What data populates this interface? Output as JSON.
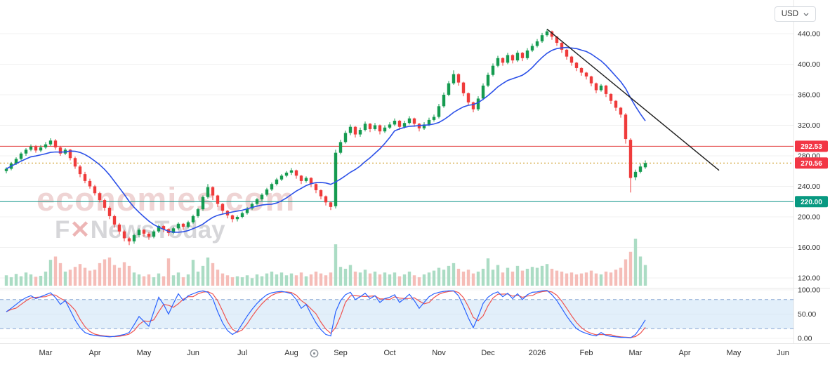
{
  "toolbar": {
    "currency": "USD"
  },
  "watermark": {
    "line1": "economies.com",
    "f": "F",
    "x": "✕",
    "rest": "NewsToday"
  },
  "colors": {
    "up": "#159b50",
    "down": "#ef3b3b",
    "ma": "#2b50e8",
    "trend": "#1f1f1f",
    "vol_up": "#abdcc4",
    "vol_down": "#f5bdb8",
    "osc_k": "#2962ff",
    "osc_d": "#ef5350",
    "band_fill": "#cfe4f7",
    "band_line": "#87a6d2",
    "grid": "#f0f0f0",
    "separator": "#e7e7e7",
    "axis_text": "#2f2f2f"
  },
  "chart_data": {
    "type": "candlestick",
    "currency": "USD",
    "months": [
      "Mar",
      "Apr",
      "May",
      "Jun",
      "Jul",
      "Aug",
      "Sep",
      "Oct",
      "Nov",
      "Dec",
      "2026",
      "Feb",
      "Mar",
      "Apr",
      "May",
      "Jun"
    ],
    "y_ticks": [
      440,
      400,
      360,
      320,
      280,
      240,
      200,
      160,
      120
    ],
    "osc_ticks": [
      100,
      50,
      0
    ],
    "osc_band": [
      20,
      80
    ],
    "price_range": [
      120,
      455
    ],
    "ma_period": 13,
    "levels": [
      {
        "price": 292.53,
        "label": "292.53",
        "line": "solid",
        "color": "#e23b3b",
        "tag_color": "#f23645"
      },
      {
        "price": 270.56,
        "label": "270.56",
        "line": "dotted",
        "color": "#cf9f2f",
        "tag_color": "#f23645"
      },
      {
        "price": 220.0,
        "label": "220.00",
        "line": "solid",
        "color": "#0d9488",
        "tag_color": "#089981"
      }
    ],
    "trend_line": {
      "start_index": 110,
      "start_price": 446,
      "end_index": 145,
      "end_price": 261
    },
    "ohlc": [
      [
        260,
        265,
        257,
        263
      ],
      [
        263,
        272,
        261,
        270
      ],
      [
        270,
        278,
        268,
        276
      ],
      [
        276,
        285,
        274,
        283
      ],
      [
        283,
        290,
        280,
        288
      ],
      [
        288,
        295,
        286,
        292
      ],
      [
        292,
        294,
        284,
        287
      ],
      [
        287,
        294,
        285,
        291
      ],
      [
        291,
        298,
        289,
        295
      ],
      [
        295,
        303,
        293,
        300
      ],
      [
        300,
        302,
        288,
        291
      ],
      [
        291,
        293,
        280,
        283
      ],
      [
        283,
        290,
        281,
        288
      ],
      [
        288,
        289,
        274,
        277
      ],
      [
        277,
        279,
        263,
        266
      ],
      [
        266,
        268,
        252,
        256
      ],
      [
        256,
        259,
        244,
        247
      ],
      [
        247,
        250,
        237,
        240
      ],
      [
        240,
        242,
        228,
        231
      ],
      [
        231,
        233,
        219,
        222
      ],
      [
        222,
        224,
        208,
        212
      ],
      [
        212,
        214,
        197,
        201
      ],
      [
        201,
        203,
        186,
        190
      ],
      [
        190,
        192,
        177,
        181
      ],
      [
        181,
        183,
        168,
        172
      ],
      [
        172,
        174,
        163,
        168
      ],
      [
        168,
        178,
        165,
        176
      ],
      [
        176,
        185,
        173,
        183
      ],
      [
        183,
        184,
        174,
        178
      ],
      [
        178,
        180,
        170,
        174
      ],
      [
        174,
        183,
        172,
        181
      ],
      [
        181,
        190,
        179,
        188
      ],
      [
        188,
        189,
        180,
        184
      ],
      [
        184,
        185,
        175,
        179
      ],
      [
        179,
        187,
        177,
        185
      ],
      [
        185,
        193,
        183,
        191
      ],
      [
        191,
        192,
        183,
        187
      ],
      [
        187,
        195,
        185,
        193
      ],
      [
        193,
        203,
        191,
        201
      ],
      [
        201,
        212,
        199,
        210
      ],
      [
        210,
        228,
        208,
        226
      ],
      [
        226,
        243,
        224,
        239
      ],
      [
        239,
        240,
        222,
        228
      ],
      [
        228,
        229,
        213,
        217
      ],
      [
        217,
        218,
        204,
        208
      ],
      [
        208,
        209,
        198,
        202
      ],
      [
        202,
        203,
        193,
        197
      ],
      [
        197,
        202,
        194,
        200
      ],
      [
        200,
        207,
        198,
        205
      ],
      [
        205,
        213,
        203,
        211
      ],
      [
        211,
        219,
        209,
        217
      ],
      [
        217,
        225,
        215,
        223
      ],
      [
        223,
        231,
        221,
        229
      ],
      [
        229,
        238,
        227,
        236
      ],
      [
        236,
        245,
        234,
        243
      ],
      [
        243,
        251,
        241,
        249
      ],
      [
        249,
        256,
        247,
        254
      ],
      [
        254,
        260,
        252,
        258
      ],
      [
        258,
        264,
        255,
        261
      ],
      [
        261,
        262,
        250,
        254
      ],
      [
        254,
        255,
        243,
        247
      ],
      [
        247,
        253,
        245,
        251
      ],
      [
        251,
        252,
        239,
        243
      ],
      [
        243,
        244,
        231,
        235
      ],
      [
        235,
        236,
        223,
        227
      ],
      [
        227,
        228,
        215,
        219
      ],
      [
        219,
        220,
        209,
        213
      ],
      [
        214,
        288,
        211,
        284
      ],
      [
        284,
        301,
        282,
        298
      ],
      [
        298,
        313,
        296,
        310
      ],
      [
        310,
        321,
        307,
        318
      ],
      [
        318,
        319,
        304,
        308
      ],
      [
        308,
        317,
        305,
        314
      ],
      [
        314,
        325,
        312,
        322
      ],
      [
        322,
        323,
        311,
        315
      ],
      [
        315,
        323,
        313,
        320
      ],
      [
        320,
        321,
        308,
        312
      ],
      [
        312,
        320,
        310,
        317
      ],
      [
        317,
        324,
        315,
        321
      ],
      [
        321,
        329,
        319,
        326
      ],
      [
        326,
        327,
        314,
        318
      ],
      [
        318,
        326,
        316,
        323
      ],
      [
        323,
        332,
        321,
        329
      ],
      [
        329,
        330,
        318,
        322
      ],
      [
        322,
        323,
        312,
        316
      ],
      [
        316,
        324,
        314,
        321
      ],
      [
        321,
        330,
        319,
        327
      ],
      [
        327,
        334,
        325,
        331
      ],
      [
        331,
        348,
        329,
        345
      ],
      [
        345,
        363,
        343,
        360
      ],
      [
        360,
        378,
        358,
        375
      ],
      [
        375,
        392,
        373,
        387
      ],
      [
        387,
        388,
        372,
        376
      ],
      [
        376,
        377,
        358,
        362
      ],
      [
        362,
        363,
        346,
        350
      ],
      [
        350,
        351,
        337,
        341
      ],
      [
        341,
        358,
        339,
        355
      ],
      [
        355,
        375,
        353,
        372
      ],
      [
        372,
        389,
        370,
        386
      ],
      [
        386,
        401,
        384,
        398
      ],
      [
        398,
        411,
        396,
        408
      ],
      [
        408,
        409,
        398,
        402
      ],
      [
        402,
        415,
        400,
        412
      ],
      [
        412,
        413,
        401,
        405
      ],
      [
        405,
        418,
        403,
        415
      ],
      [
        415,
        416,
        404,
        408
      ],
      [
        408,
        421,
        406,
        418
      ],
      [
        418,
        427,
        416,
        424
      ],
      [
        424,
        433,
        422,
        430
      ],
      [
        430,
        441,
        428,
        438
      ],
      [
        438,
        446,
        436,
        443
      ],
      [
        443,
        444,
        432,
        436
      ],
      [
        436,
        437,
        424,
        428
      ],
      [
        428,
        429,
        415,
        419
      ],
      [
        419,
        420,
        406,
        410
      ],
      [
        410,
        411,
        398,
        402
      ],
      [
        402,
        403,
        391,
        395
      ],
      [
        395,
        396,
        385,
        389
      ],
      [
        389,
        390,
        380,
        384
      ],
      [
        384,
        385,
        371,
        375
      ],
      [
        375,
        376,
        362,
        366
      ],
      [
        366,
        374,
        364,
        372
      ],
      [
        372,
        373,
        357,
        361
      ],
      [
        361,
        362,
        348,
        352
      ],
      [
        352,
        353,
        339,
        343
      ],
      [
        343,
        344,
        330,
        334
      ],
      [
        334,
        336,
        296,
        302
      ],
      [
        301,
        303,
        232,
        251
      ],
      [
        252,
        262,
        248,
        259
      ],
      [
        259,
        270,
        257,
        266
      ],
      [
        265,
        274,
        263,
        270.56
      ]
    ],
    "volume": [
      22,
      18,
      25,
      20,
      28,
      24,
      19,
      21,
      30,
      55,
      62,
      48,
      30,
      34,
      40,
      46,
      38,
      32,
      34,
      48,
      56,
      60,
      44,
      38,
      50,
      42,
      28,
      24,
      20,
      24,
      18,
      26,
      20,
      58,
      22,
      28,
      18,
      24,
      55,
      30,
      42,
      60,
      48,
      34,
      26,
      22,
      18,
      20,
      18,
      22,
      16,
      24,
      20,
      26,
      30,
      24,
      28,
      22,
      26,
      22,
      28,
      20,
      24,
      30,
      26,
      22,
      28,
      88,
      40,
      36,
      44,
      30,
      28,
      34,
      26,
      30,
      24,
      28,
      24,
      28,
      20,
      24,
      30,
      22,
      18,
      24,
      28,
      32,
      38,
      34,
      42,
      48,
      36,
      30,
      34,
      26,
      30,
      36,
      58,
      34,
      44,
      28,
      38,
      30,
      42,
      32,
      36,
      40,
      38,
      42,
      46,
      36,
      32,
      30,
      26,
      28,
      24,
      26,
      28,
      32,
      26,
      24,
      30,
      28,
      34,
      38,
      56,
      72,
      100,
      62,
      44
    ],
    "stoch_k": [
      55,
      62,
      70,
      78,
      84,
      88,
      82,
      86,
      90,
      94,
      84,
      70,
      78,
      58,
      38,
      22,
      12,
      8,
      6,
      5,
      4,
      3,
      4,
      6,
      8,
      12,
      28,
      45,
      35,
      25,
      55,
      85,
      70,
      50,
      72,
      92,
      78,
      88,
      92,
      96,
      98,
      95,
      82,
      55,
      32,
      16,
      8,
      14,
      30,
      46,
      60,
      72,
      82,
      90,
      94,
      96,
      97,
      95,
      92,
      80,
      62,
      70,
      50,
      32,
      18,
      8,
      5,
      55,
      78,
      90,
      95,
      80,
      86,
      93,
      82,
      88,
      74,
      82,
      85,
      90,
      74,
      82,
      91,
      78,
      62,
      74,
      86,
      92,
      95,
      97,
      98,
      98,
      88,
      66,
      42,
      22,
      45,
      72,
      85,
      92,
      96,
      86,
      93,
      82,
      92,
      80,
      90,
      95,
      96,
      98,
      99,
      90,
      78,
      62,
      46,
      32,
      20,
      14,
      10,
      7,
      5,
      12,
      6,
      4,
      3,
      2,
      2,
      1,
      8,
      22,
      38
    ]
  }
}
